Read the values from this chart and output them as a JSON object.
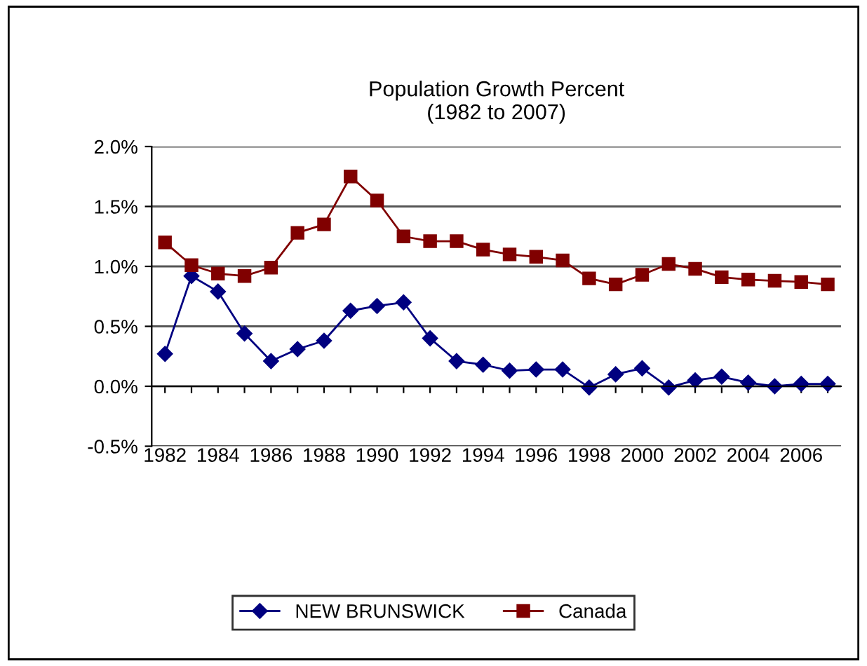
{
  "chart_data": {
    "type": "line",
    "title": "Population Growth Percent\n(1982 to 2007)",
    "categories": [
      "1982",
      null,
      "1984",
      null,
      "1986",
      null,
      "1988",
      null,
      "1990",
      null,
      "1992",
      null,
      "1994",
      null,
      "1996",
      null,
      "1998",
      null,
      "2000",
      null,
      "2002",
      null,
      "2004",
      null,
      "2006",
      null
    ],
    "series": [
      {
        "name": "NEW BRUNSWICK",
        "color": "#000080",
        "marker": "diamond",
        "values": [
          0.27,
          0.92,
          0.79,
          0.44,
          0.21,
          0.31,
          0.38,
          0.63,
          0.67,
          0.7,
          0.4,
          0.21,
          0.18,
          0.13,
          0.14,
          0.14,
          -0.01,
          0.1,
          0.15,
          -0.01,
          0.05,
          0.08,
          0.03,
          0.0,
          0.02,
          0.02
        ]
      },
      {
        "name": "Canada",
        "color": "#800000",
        "marker": "square",
        "values": [
          1.2,
          1.01,
          0.94,
          0.92,
          0.99,
          1.28,
          1.35,
          1.75,
          1.55,
          1.25,
          1.21,
          1.21,
          1.14,
          1.1,
          1.08,
          1.05,
          0.9,
          0.85,
          0.93,
          1.02,
          0.98,
          0.91,
          0.89,
          0.88,
          0.87,
          0.85
        ]
      }
    ],
    "ylim": [
      -0.5,
      2.0
    ],
    "yticks": [
      {
        "value": -0.5,
        "label": "-0.5%"
      },
      {
        "value": 0.0,
        "label": "0.0%"
      },
      {
        "value": 0.5,
        "label": "0.5%"
      },
      {
        "value": 1.0,
        "label": "1.0%"
      },
      {
        "value": 1.5,
        "label": "1.5%"
      },
      {
        "value": 2.0,
        "label": "2.0%"
      }
    ],
    "grid": "y",
    "legend": "bottom",
    "line_style": "solid"
  }
}
